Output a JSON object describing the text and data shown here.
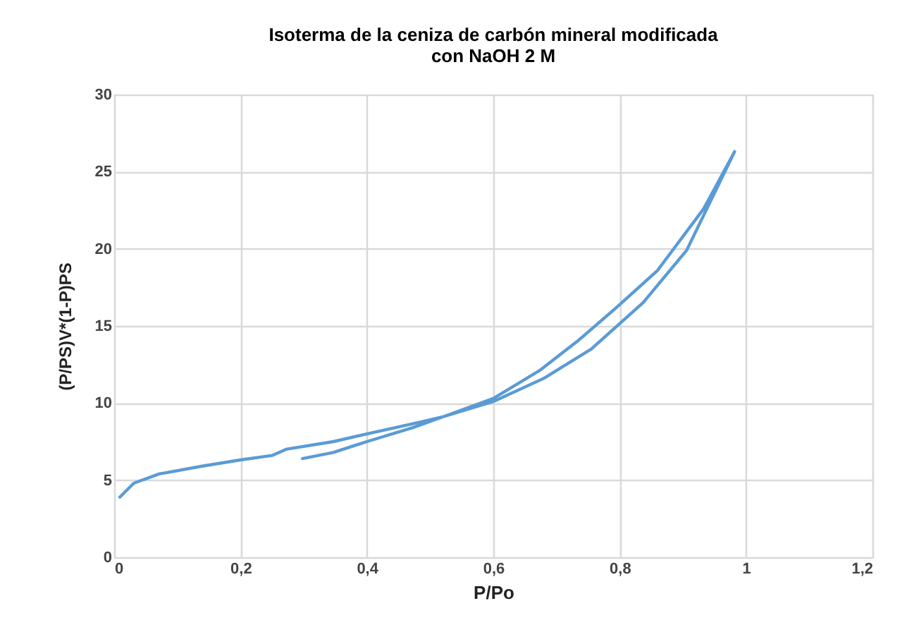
{
  "chart_data": {
    "type": "line",
    "title": "Isoterma de la ceniza de carbón mineral modificada con NaOH 2 M",
    "xlabel": "P/Po",
    "ylabel": "(P/PS)V*(1-P)PS",
    "series": [
      {
        "color": "#5b9bd5",
        "x": [
          0.009,
          0.031,
          0.071,
          0.138,
          0.198,
          0.25,
          0.272,
          0.347,
          0.4,
          0.488,
          0.52,
          0.6,
          0.68,
          0.755,
          0.837,
          0.906,
          0.982,
          0.933,
          0.86,
          0.795,
          0.733,
          0.673,
          0.6,
          0.52,
          0.472,
          0.4,
          0.347,
          0.298
        ],
        "values": [
          3.9,
          4.8,
          5.4,
          5.9,
          6.3,
          6.6,
          7.0,
          7.5,
          8.0,
          8.8,
          9.1,
          10.1,
          11.6,
          13.5,
          16.5,
          19.9,
          26.3,
          22.6,
          18.6,
          16.2,
          14.0,
          12.1,
          10.3,
          9.1,
          8.4,
          7.5,
          6.8,
          6.4
        ]
      }
    ],
    "xlim": [
      0,
      1.2
    ],
    "xticks": [
      0,
      {
        "value": 0.2,
        "label": "0,2"
      },
      {
        "value": 0.4,
        "label": "0,4"
      },
      {
        "value": 0.6,
        "label": "0,6"
      },
      {
        "value": 0.8,
        "label": "0,8"
      },
      1,
      {
        "value": 1.2,
        "label": "1,2"
      }
    ],
    "ylim": [
      0,
      30
    ],
    "yticks": [
      0,
      5,
      10,
      15,
      20,
      25,
      30
    ],
    "grid": true,
    "marker": "none",
    "line_style": "solid",
    "legend": false
  }
}
